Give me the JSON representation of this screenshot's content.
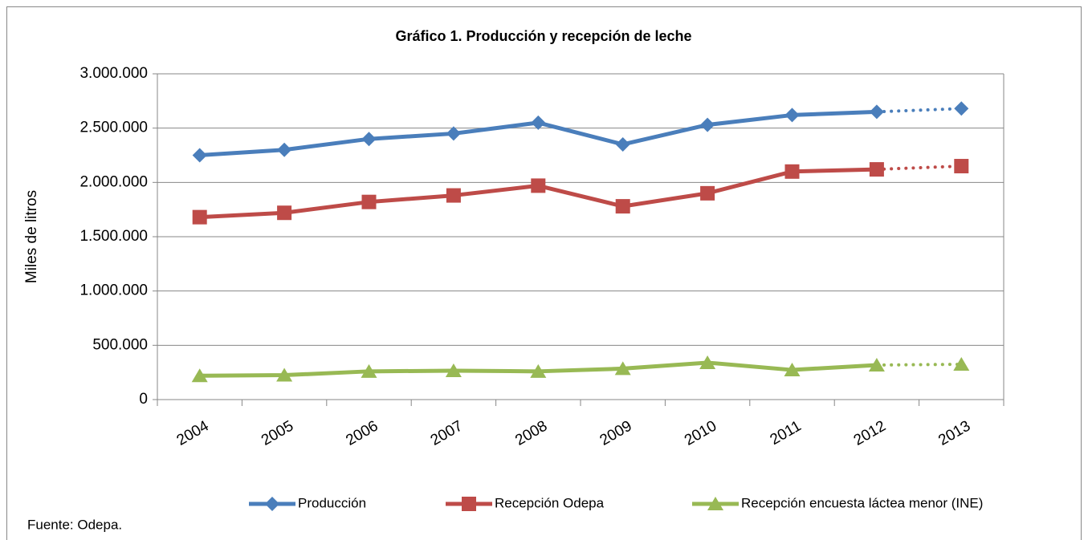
{
  "chart_data": {
    "type": "line",
    "title": "Gráfico 1. Producción y recepción de leche",
    "y_label": "Miles de litros",
    "source": "Fuente: Odepa.",
    "categories": [
      "2004",
      "2005",
      "2006",
      "2007",
      "2008",
      "2009",
      "2010",
      "2011",
      "2012",
      "2013"
    ],
    "series": [
      {
        "name": "Producción",
        "color": "#4a7ebb",
        "marker": "diamond",
        "values": [
          2250000,
          2300000,
          2400000,
          2450000,
          2550000,
          2350000,
          2530000,
          2620000,
          2650000,
          2680000
        ]
      },
      {
        "name": "Recepción Odepa",
        "color": "#be4b48",
        "marker": "square",
        "values": [
          1680000,
          1720000,
          1820000,
          1880000,
          1970000,
          1780000,
          1900000,
          2100000,
          2120000,
          2150000
        ]
      },
      {
        "name": "Recepción encuesta láctea menor (INE)",
        "color": "#98b954",
        "marker": "triangle",
        "values": [
          220000,
          225000,
          260000,
          266000,
          260000,
          285000,
          340000,
          273000,
          318000,
          325000
        ]
      }
    ],
    "ylim": [
      0,
      3000000
    ],
    "yticks": [
      0,
      {
        "value": 500000,
        "label": "500.000"
      },
      {
        "value": 1000000,
        "label": "1.000.000"
      },
      {
        "value": 1500000,
        "label": "1.500.000"
      },
      {
        "value": 2000000,
        "label": "2.000.000"
      },
      {
        "value": 2500000,
        "label": "2.500.000"
      },
      {
        "value": 3000000,
        "label": "3.000.000"
      }
    ],
    "grid": true,
    "legend": "bottom",
    "dotted_last_segment": true
  }
}
